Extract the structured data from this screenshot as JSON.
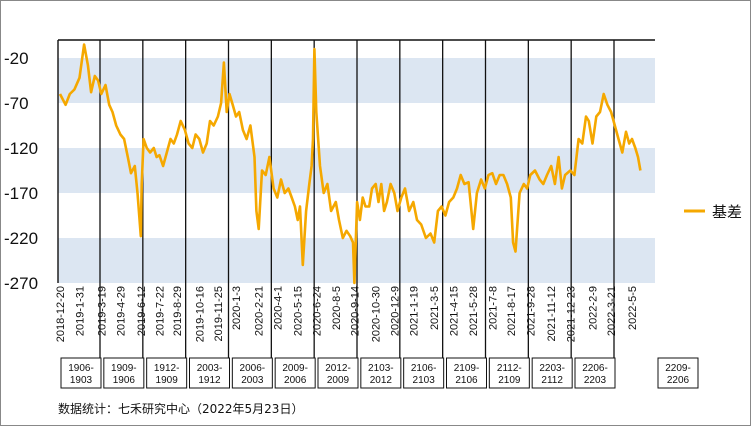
{
  "source_note": "数据统计：七禾研究中心（2022年5月23日）",
  "colors": {
    "series": "#F5A800",
    "band": "#DCE6F2",
    "background": "#FFFFFF",
    "axis": "#111111"
  },
  "chart_data": {
    "type": "line",
    "title": "",
    "xlabel": "",
    "ylabel": "",
    "ylim": [
      -270,
      0
    ],
    "yticks": [
      -20,
      -70,
      -120,
      -170,
      -220,
      -270
    ],
    "grid": "alternating horizontal bands",
    "legend_position": "right",
    "x_tick_labels": [
      "2018-12-20",
      "2019-1-31",
      "2019-3-19",
      "2019-4-29",
      "2019-6-12",
      "2019-7-22",
      "2019-8-29",
      "2019-10-16",
      "2019-11-25",
      "2020-1-3",
      "2020-2-21",
      "2020-4-1",
      "2020-5-15",
      "2020-6-24",
      "2020-8-5",
      "2020-9-14",
      "2020-10-30",
      "2020-12-9",
      "2021-1-19",
      "2021-3-5",
      "2021-4-15",
      "2021-5-28",
      "2021-7-8",
      "2021-8-17",
      "2021-9-28",
      "2021-11-12",
      "2021-12-23",
      "2022-2-9",
      "2022-3-21",
      "2022-5-5"
    ],
    "contract_periods": [
      "1906-1903",
      "1909-1906",
      "1912-1909",
      "2003-1912",
      "2006-2003",
      "2009-2006",
      "2012-2009",
      "2103-2012",
      "2106-2103",
      "2109-2106",
      "2112-2109",
      "2203-2112",
      "2206-2203",
      "2209-2206"
    ],
    "series": [
      {
        "name": "基差",
        "x": [
          "2018-12-20",
          "2019-1-1",
          "2019-1-10",
          "2019-1-20",
          "2019-1-31",
          "2019-2-10",
          "2019-2-18",
          "2019-2-25",
          "2019-3-5",
          "2019-3-12",
          "2019-3-19",
          "2019-3-28",
          "2019-4-5",
          "2019-4-12",
          "2019-4-20",
          "2019-4-29",
          "2019-5-7",
          "2019-5-15",
          "2019-5-22",
          "2019-5-30",
          "2019-6-5",
          "2019-6-12",
          "2019-6-14",
          "2019-6-18",
          "2019-6-25",
          "2019-7-2",
          "2019-7-10",
          "2019-7-16",
          "2019-7-22",
          "2019-7-30",
          "2019-8-7",
          "2019-8-15",
          "2019-8-22",
          "2019-8-29",
          "2019-9-6",
          "2019-9-15",
          "2019-9-23",
          "2019-10-1",
          "2019-10-8",
          "2019-10-16",
          "2019-10-24",
          "2019-11-1",
          "2019-11-8",
          "2019-11-16",
          "2019-11-25",
          "2019-12-2",
          "2019-12-8",
          "2019-12-14",
          "2019-12-20",
          "2019-12-27",
          "2020-1-3",
          "2020-1-10",
          "2020-1-18",
          "2020-1-26",
          "2020-2-3",
          "2020-2-12",
          "2020-2-16",
          "2020-2-21",
          "2020-2-28",
          "2020-3-7",
          "2020-3-15",
          "2020-3-24",
          "2020-4-1",
          "2020-4-9",
          "2020-4-17",
          "2020-4-25",
          "2020-5-2",
          "2020-5-9",
          "2020-5-15",
          "2020-5-20",
          "2020-5-26",
          "2020-6-2",
          "2020-6-9",
          "2020-6-14",
          "2020-6-17",
          "2020-6-20",
          "2020-6-24",
          "2020-7-2",
          "2020-7-10",
          "2020-7-18",
          "2020-7-26",
          "2020-8-5",
          "2020-8-12",
          "2020-8-20",
          "2020-8-28",
          "2020-9-5",
          "2020-9-11",
          "2020-9-14",
          "2020-9-20",
          "2020-9-26",
          "2020-10-2",
          "2020-10-8",
          "2020-10-16",
          "2020-10-22",
          "2020-10-30",
          "2020-11-5",
          "2020-11-11",
          "2020-11-17",
          "2020-11-23",
          "2020-12-1",
          "2020-12-9",
          "2020-12-16",
          "2020-12-24",
          "2021-1-1",
          "2021-1-10",
          "2021-1-19",
          "2021-1-27",
          "2021-2-5",
          "2021-2-15",
          "2021-2-25",
          "2021-3-5",
          "2021-3-13",
          "2021-3-21",
          "2021-3-29",
          "2021-4-6",
          "2021-4-15",
          "2021-4-23",
          "2021-5-1",
          "2021-5-9",
          "2021-5-18",
          "2021-5-28",
          "2021-6-5",
          "2021-6-14",
          "2021-6-22",
          "2021-6-30",
          "2021-7-8",
          "2021-7-16",
          "2021-7-24",
          "2021-8-1",
          "2021-8-9",
          "2021-8-17",
          "2021-8-22",
          "2021-8-27",
          "2021-9-5",
          "2021-9-14",
          "2021-9-21",
          "2021-9-28",
          "2021-10-8",
          "2021-10-18",
          "2021-10-26",
          "2021-11-3",
          "2021-11-12",
          "2021-11-20",
          "2021-11-28",
          "2021-12-5",
          "2021-12-12",
          "2021-12-23",
          "2022-1-1",
          "2022-1-10",
          "2022-1-18",
          "2022-1-26",
          "2022-2-1",
          "2022-2-9",
          "2022-2-17",
          "2022-2-25",
          "2022-3-5",
          "2022-3-13",
          "2022-3-21",
          "2022-3-29",
          "2022-4-6",
          "2022-4-14",
          "2022-4-22",
          "2022-4-29",
          "2022-5-5",
          "2022-5-12",
          "2022-5-18",
          "2022-5-23"
        ],
        "values": [
          -60,
          -72,
          -60,
          -55,
          -42,
          -5,
          -28,
          -58,
          -40,
          -45,
          -60,
          -50,
          -72,
          -80,
          -95,
          -105,
          -110,
          -130,
          -148,
          -140,
          -170,
          -218,
          -160,
          -110,
          -120,
          -125,
          -120,
          -130,
          -128,
          -140,
          -125,
          -110,
          -115,
          -105,
          -90,
          -100,
          -115,
          -120,
          -105,
          -110,
          -125,
          -115,
          -90,
          -95,
          -85,
          -70,
          -25,
          -80,
          -60,
          -72,
          -85,
          -80,
          -100,
          -110,
          -95,
          -130,
          -190,
          -210,
          -145,
          -150,
          -130,
          -165,
          -175,
          -155,
          -170,
          -165,
          -175,
          -185,
          -200,
          -185,
          -250,
          -190,
          -160,
          -140,
          -110,
          -10,
          -80,
          -140,
          -170,
          -160,
          -190,
          -180,
          -200,
          -220,
          -212,
          -218,
          -225,
          -270,
          -180,
          -200,
          -175,
          -185,
          -185,
          -165,
          -160,
          -180,
          -160,
          -190,
          -180,
          -160,
          -170,
          -190,
          -175,
          -165,
          -190,
          -180,
          -200,
          -205,
          -220,
          -215,
          -225,
          -190,
          -185,
          -195,
          -180,
          -175,
          -165,
          -150,
          -160,
          -158,
          -210,
          -170,
          -155,
          -165,
          -150,
          -148,
          -160,
          -150,
          -150,
          -160,
          -175,
          -225,
          -235,
          -170,
          -160,
          -165,
          -150,
          -145,
          -155,
          -160,
          -150,
          -140,
          -160,
          -130,
          -165,
          -150,
          -145,
          -150,
          -110,
          -115,
          -85,
          -90,
          -115,
          -85,
          -80,
          -60,
          -72,
          -80,
          -95,
          -110,
          -125,
          -102,
          -115,
          -110,
          -120,
          -130,
          -145
        ]
      }
    ]
  }
}
